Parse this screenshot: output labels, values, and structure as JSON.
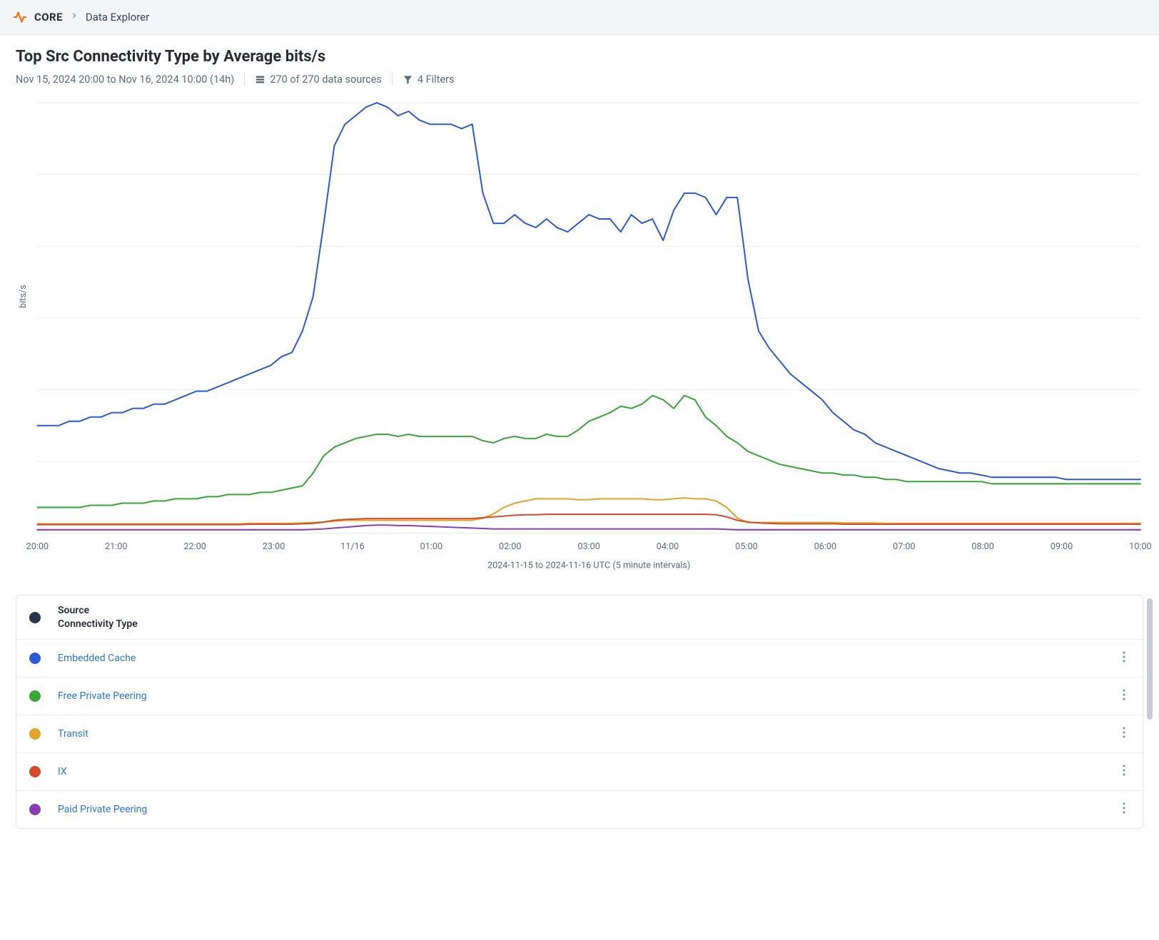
{
  "breadcrumb": {
    "root": "CORE",
    "current": "Data Explorer"
  },
  "page": {
    "title": "Top Src Connectivity Type by Average bits/s",
    "date_range": "Nov 15, 2024 20:00 to Nov 16, 2024 10:00 (14h)",
    "sources_text": "270 of 270 data sources",
    "filters_text": "4 Filters"
  },
  "chart": {
    "type": "line",
    "y_axis_label": "bits/s",
    "x_axis_label": "2024-11-15 to 2024-11-16 UTC (5 minute intervals)",
    "background_color": "#ffffff",
    "grid_color": "#eceef1",
    "axis_text_color": "#5f6b7a",
    "axis_fontsize": 12.5,
    "line_width": 2.0,
    "x_ticks": [
      "20:00",
      "21:00",
      "22:00",
      "23:00",
      "11/16",
      "01:00",
      "02:00",
      "03:00",
      "04:00",
      "05:00",
      "06:00",
      "07:00",
      "08:00",
      "09:00",
      "10:00"
    ],
    "y_gridlines": 6,
    "ylim": [
      0,
      100
    ],
    "series": [
      {
        "name": "Embedded Cache",
        "color": "#2f5bd0",
        "values": [
          25,
          25,
          25,
          26,
          26,
          27,
          27,
          28,
          28,
          29,
          29,
          30,
          30,
          31,
          32,
          33,
          33,
          34,
          35,
          36,
          37,
          38,
          39,
          41,
          42,
          47,
          55,
          72,
          90,
          95,
          97,
          99,
          100,
          99,
          97,
          98,
          96,
          95,
          95,
          95,
          94,
          95,
          79,
          72,
          72,
          74,
          72,
          71,
          73,
          71,
          70,
          72,
          74,
          73,
          73,
          70,
          74,
          72,
          73,
          68,
          75,
          79,
          79,
          78,
          74,
          78,
          78,
          59,
          47,
          43,
          40,
          37,
          35,
          33,
          31,
          28,
          26,
          24,
          23,
          21,
          20,
          19,
          18,
          17,
          16,
          15,
          14.5,
          14,
          14,
          13.5,
          13,
          13,
          13,
          13,
          13,
          13,
          13,
          12.5,
          12.5,
          12.5,
          12.5,
          12.5,
          12.5,
          12.5,
          12.5
        ]
      },
      {
        "name": "Free Private Peering",
        "color": "#3ba43b",
        "values": [
          6,
          6,
          6,
          6,
          6,
          6.5,
          6.5,
          6.5,
          7,
          7,
          7,
          7.5,
          7.5,
          8,
          8,
          8,
          8.5,
          8.5,
          9,
          9,
          9,
          9.5,
          9.5,
          10,
          10.5,
          11,
          14,
          18,
          20,
          21,
          22,
          22.5,
          23,
          23,
          22.5,
          23,
          22.5,
          22.5,
          22.5,
          22.5,
          22.5,
          22.5,
          21.5,
          21,
          22,
          22.5,
          22,
          22,
          23,
          22.5,
          22.5,
          24,
          26,
          27,
          28,
          29.5,
          29,
          30,
          32,
          31,
          29,
          32,
          31,
          27,
          25,
          22.5,
          21,
          19,
          18,
          17,
          16,
          15.5,
          15,
          14.5,
          14,
          14,
          13.5,
          13.5,
          13,
          13,
          12.5,
          12.5,
          12,
          12,
          12,
          12,
          12,
          12,
          12,
          12,
          11.5,
          11.5,
          11.5,
          11.5,
          11.5,
          11.5,
          11.5,
          11.5,
          11.5,
          11.5,
          11.5,
          11.5,
          11.5,
          11.5,
          11.5
        ]
      },
      {
        "name": "Transit",
        "color": "#e0a52c",
        "values": [
          2.2,
          2.2,
          2.2,
          2.2,
          2.2,
          2.2,
          2.2,
          2.2,
          2.2,
          2.2,
          2.2,
          2.2,
          2.2,
          2.2,
          2.2,
          2.2,
          2.2,
          2.2,
          2.2,
          2.2,
          2.3,
          2.3,
          2.3,
          2.3,
          2.3,
          2.4,
          2.5,
          2.6,
          2.8,
          3,
          3,
          3,
          3,
          3,
          3,
          3,
          3,
          3,
          3,
          3,
          3,
          3,
          3.5,
          4.5,
          6,
          7,
          7.5,
          8,
          8,
          8,
          8,
          7.8,
          7.8,
          8,
          8,
          8,
          8,
          8,
          7.8,
          7.8,
          8,
          8.2,
          8,
          8,
          7.5,
          6,
          3.5,
          2.5,
          2.5,
          2.5,
          2.5,
          2.5,
          2.5,
          2.5,
          2.5,
          2.5,
          2.4,
          2.4,
          2.4,
          2.4,
          2.3,
          2.3,
          2.3,
          2.3,
          2.3,
          2.3,
          2.3,
          2.3,
          2.3,
          2.3,
          2.3,
          2.3,
          2.3,
          2.3,
          2.3,
          2.3,
          2.3,
          2.3,
          2.3,
          2.3,
          2.3,
          2.3,
          2.3,
          2.3,
          2.3
        ]
      },
      {
        "name": "IX",
        "color": "#d64a2c",
        "values": [
          2,
          2,
          2,
          2,
          2,
          2,
          2,
          2,
          2,
          2,
          2,
          2,
          2,
          2,
          2,
          2,
          2,
          2,
          2,
          2,
          2.1,
          2.1,
          2.1,
          2.1,
          2.1,
          2.2,
          2.3,
          2.6,
          3,
          3.2,
          3.3,
          3.4,
          3.4,
          3.4,
          3.4,
          3.4,
          3.4,
          3.4,
          3.4,
          3.4,
          3.4,
          3.4,
          3.6,
          3.8,
          4,
          4.2,
          4.3,
          4.3,
          4.4,
          4.4,
          4.4,
          4.4,
          4.4,
          4.4,
          4.4,
          4.4,
          4.4,
          4.4,
          4.4,
          4.4,
          4.4,
          4.4,
          4.4,
          4.4,
          4.3,
          3.8,
          3,
          2.6,
          2.4,
          2.3,
          2.2,
          2.2,
          2.2,
          2.2,
          2.2,
          2.2,
          2.1,
          2.1,
          2.1,
          2.1,
          2.1,
          2.1,
          2.1,
          2.1,
          2.1,
          2.1,
          2.1,
          2.1,
          2.1,
          2.1,
          2.1,
          2.1,
          2.1,
          2.1,
          2.1,
          2.1,
          2.1,
          2.1,
          2.1,
          2.1,
          2.1,
          2.1,
          2.1,
          2.1,
          2.1
        ]
      },
      {
        "name": "Paid Private Peering",
        "color": "#8a3fb0",
        "values": [
          0.8,
          0.8,
          0.8,
          0.8,
          0.8,
          0.8,
          0.8,
          0.8,
          0.8,
          0.8,
          0.8,
          0.8,
          0.8,
          0.8,
          0.8,
          0.8,
          0.8,
          0.8,
          0.8,
          0.8,
          0.8,
          0.8,
          0.8,
          0.8,
          0.8,
          0.8,
          0.9,
          1,
          1.2,
          1.4,
          1.6,
          1.8,
          1.9,
          1.9,
          1.8,
          1.8,
          1.7,
          1.6,
          1.5,
          1.4,
          1.3,
          1.2,
          1.1,
          1,
          1,
          1,
          1,
          1,
          1,
          1,
          1,
          1,
          1,
          1,
          1,
          1,
          1,
          1,
          1,
          1,
          1,
          1,
          1,
          1,
          1,
          0.9,
          0.8,
          0.8,
          0.8,
          0.8,
          0.8,
          0.8,
          0.8,
          0.8,
          0.8,
          0.8,
          0.8,
          0.8,
          0.8,
          0.8,
          0.8,
          0.8,
          0.8,
          0.8,
          0.8,
          0.8,
          0.8,
          0.8,
          0.8,
          0.8,
          0.8,
          0.8,
          0.8,
          0.8,
          0.8,
          0.8,
          0.8,
          0.8,
          0.8,
          0.8,
          0.8,
          0.8,
          0.8,
          0.8,
          0.8
        ]
      }
    ]
  },
  "legend": {
    "header_line1": "Source",
    "header_line2": "Connectivity Type",
    "header_dot_color": "#2b3648",
    "rows": [
      {
        "label": "Embedded Cache",
        "color": "#2f5bd0"
      },
      {
        "label": "Free Private Peering",
        "color": "#3ba43b"
      },
      {
        "label": "Transit",
        "color": "#e0a52c"
      },
      {
        "label": "IX",
        "color": "#d64a2c"
      },
      {
        "label": "Paid Private Peering",
        "color": "#8a3fb0"
      }
    ]
  }
}
